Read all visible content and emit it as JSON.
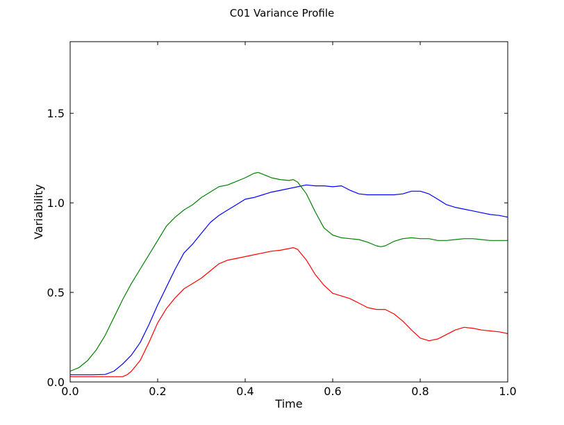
{
  "chart_data": {
    "type": "line",
    "title": "C01 Variance Profile",
    "xlabel": "Time",
    "ylabel": "Variability",
    "xlim": [
      0.0,
      1.0
    ],
    "ylim": [
      0.0,
      1.9
    ],
    "xticks": [
      "0.0",
      "0.2",
      "0.4",
      "0.6",
      "0.8",
      "1.0"
    ],
    "yticks": [
      "0.0",
      "0.5",
      "1.0",
      "1.5"
    ],
    "xtick_values": [
      0.0,
      0.2,
      0.4,
      0.6,
      0.8,
      1.0
    ],
    "ytick_values": [
      0.0,
      0.5,
      1.0,
      1.5
    ],
    "grid": false,
    "series": [
      {
        "color": "#0000ff",
        "x": [
          0.0,
          0.05,
          0.08,
          0.1,
          0.12,
          0.14,
          0.16,
          0.18,
          0.2,
          0.22,
          0.24,
          0.26,
          0.28,
          0.3,
          0.32,
          0.34,
          0.36,
          0.38,
          0.4,
          0.42,
          0.44,
          0.46,
          0.48,
          0.5,
          0.52,
          0.54,
          0.56,
          0.58,
          0.6,
          0.62,
          0.64,
          0.66,
          0.68,
          0.7,
          0.72,
          0.74,
          0.76,
          0.78,
          0.8,
          0.82,
          0.84,
          0.86,
          0.88,
          0.9,
          0.92,
          0.94,
          0.96,
          0.98,
          1.0
        ],
        "y": [
          0.04,
          0.04,
          0.042,
          0.06,
          0.1,
          0.15,
          0.22,
          0.32,
          0.43,
          0.53,
          0.63,
          0.72,
          0.77,
          0.83,
          0.89,
          0.93,
          0.96,
          0.99,
          1.02,
          1.03,
          1.045,
          1.06,
          1.07,
          1.08,
          1.09,
          1.1,
          1.095,
          1.095,
          1.09,
          1.095,
          1.07,
          1.05,
          1.045,
          1.045,
          1.045,
          1.045,
          1.05,
          1.065,
          1.065,
          1.05,
          1.02,
          0.99,
          0.975,
          0.965,
          0.955,
          0.945,
          0.935,
          0.93,
          0.92
        ]
      },
      {
        "color": "#008000",
        "x": [
          0.0,
          0.02,
          0.04,
          0.06,
          0.08,
          0.1,
          0.12,
          0.14,
          0.16,
          0.18,
          0.2,
          0.22,
          0.24,
          0.26,
          0.28,
          0.3,
          0.32,
          0.34,
          0.36,
          0.38,
          0.4,
          0.42,
          0.43,
          0.44,
          0.46,
          0.48,
          0.5,
          0.51,
          0.52,
          0.54,
          0.56,
          0.58,
          0.6,
          0.62,
          0.64,
          0.66,
          0.68,
          0.7,
          0.71,
          0.72,
          0.74,
          0.76,
          0.78,
          0.8,
          0.82,
          0.84,
          0.86,
          0.88,
          0.9,
          0.92,
          0.94,
          0.96,
          0.98,
          1.0
        ],
        "y": [
          0.06,
          0.08,
          0.12,
          0.18,
          0.26,
          0.36,
          0.46,
          0.55,
          0.63,
          0.71,
          0.79,
          0.87,
          0.92,
          0.96,
          0.99,
          1.03,
          1.06,
          1.09,
          1.1,
          1.12,
          1.14,
          1.165,
          1.17,
          1.16,
          1.14,
          1.13,
          1.125,
          1.13,
          1.115,
          1.05,
          0.95,
          0.86,
          0.82,
          0.805,
          0.8,
          0.795,
          0.78,
          0.76,
          0.755,
          0.76,
          0.785,
          0.8,
          0.805,
          0.8,
          0.8,
          0.79,
          0.79,
          0.795,
          0.8,
          0.8,
          0.795,
          0.79,
          0.79,
          0.79
        ]
      },
      {
        "color": "#ff0000",
        "x": [
          0.0,
          0.05,
          0.1,
          0.12,
          0.13,
          0.14,
          0.16,
          0.18,
          0.2,
          0.22,
          0.24,
          0.26,
          0.28,
          0.3,
          0.32,
          0.34,
          0.36,
          0.38,
          0.4,
          0.42,
          0.44,
          0.46,
          0.48,
          0.5,
          0.51,
          0.52,
          0.54,
          0.56,
          0.58,
          0.6,
          0.62,
          0.64,
          0.66,
          0.68,
          0.7,
          0.72,
          0.74,
          0.76,
          0.78,
          0.8,
          0.82,
          0.84,
          0.86,
          0.88,
          0.9,
          0.92,
          0.94,
          0.96,
          0.98,
          1.0
        ],
        "y": [
          0.03,
          0.03,
          0.03,
          0.03,
          0.04,
          0.06,
          0.12,
          0.22,
          0.33,
          0.41,
          0.47,
          0.52,
          0.55,
          0.58,
          0.62,
          0.66,
          0.68,
          0.69,
          0.7,
          0.71,
          0.72,
          0.73,
          0.735,
          0.745,
          0.75,
          0.74,
          0.68,
          0.6,
          0.54,
          0.495,
          0.48,
          0.465,
          0.44,
          0.415,
          0.405,
          0.405,
          0.38,
          0.34,
          0.29,
          0.245,
          0.23,
          0.24,
          0.265,
          0.29,
          0.305,
          0.3,
          0.29,
          0.285,
          0.28,
          0.27
        ]
      }
    ]
  }
}
